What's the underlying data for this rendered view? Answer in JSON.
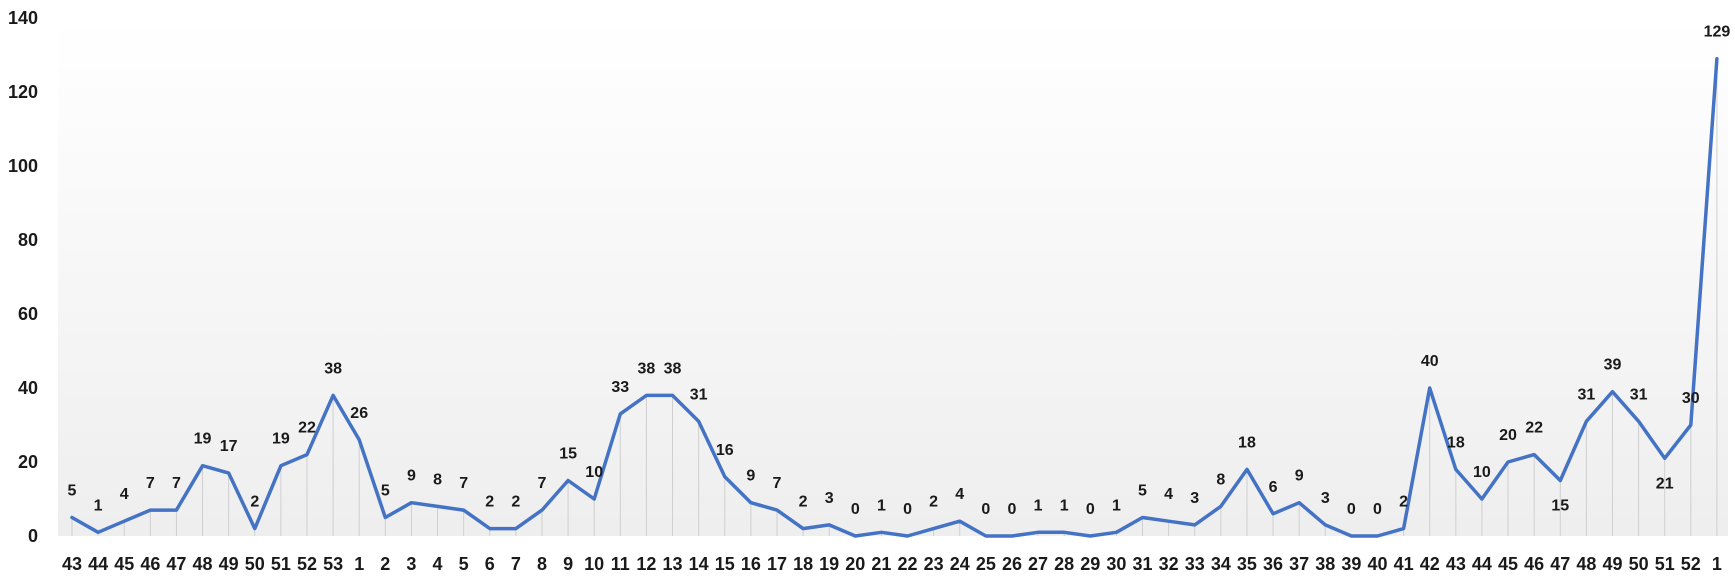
{
  "chart_data": {
    "type": "line",
    "title": "",
    "xlabel": "",
    "ylabel": "",
    "ylim": [
      0,
      140
    ],
    "yticks": [
      "0",
      "20",
      "40",
      "60",
      "80",
      "100",
      "120",
      "140"
    ],
    "grid": "vertical drop lines",
    "legend": "none",
    "categories": [
      "43",
      "44",
      "45",
      "46",
      "47",
      "48",
      "49",
      "50",
      "51",
      "52",
      "53",
      "1",
      "2",
      "3",
      "4",
      "5",
      "6",
      "7",
      "8",
      "9",
      "10",
      "11",
      "12",
      "13",
      "14",
      "15",
      "16",
      "17",
      "18",
      "19",
      "20",
      "21",
      "22",
      "23",
      "24",
      "25",
      "26",
      "27",
      "28",
      "29",
      "30",
      "31",
      "32",
      "33",
      "34",
      "35",
      "36",
      "37",
      "38",
      "39",
      "40",
      "41",
      "42",
      "43",
      "44",
      "45",
      "46",
      "47",
      "48",
      "49",
      "50",
      "51",
      "52",
      "1"
    ],
    "series": [
      {
        "values": [
          5,
          1,
          4,
          7,
          7,
          19,
          17,
          2,
          19,
          22,
          38,
          26,
          5,
          9,
          8,
          7,
          2,
          2,
          7,
          15,
          10,
          33,
          38,
          38,
          31,
          16,
          9,
          7,
          2,
          3,
          0,
          1,
          0,
          2,
          4,
          0,
          0,
          1,
          1,
          0,
          1,
          5,
          4,
          3,
          8,
          18,
          6,
          9,
          3,
          0,
          0,
          2,
          40,
          18,
          10,
          20,
          22,
          15,
          31,
          39,
          31,
          21,
          30,
          129
        ],
        "color": "#4472c4"
      }
    ]
  }
}
